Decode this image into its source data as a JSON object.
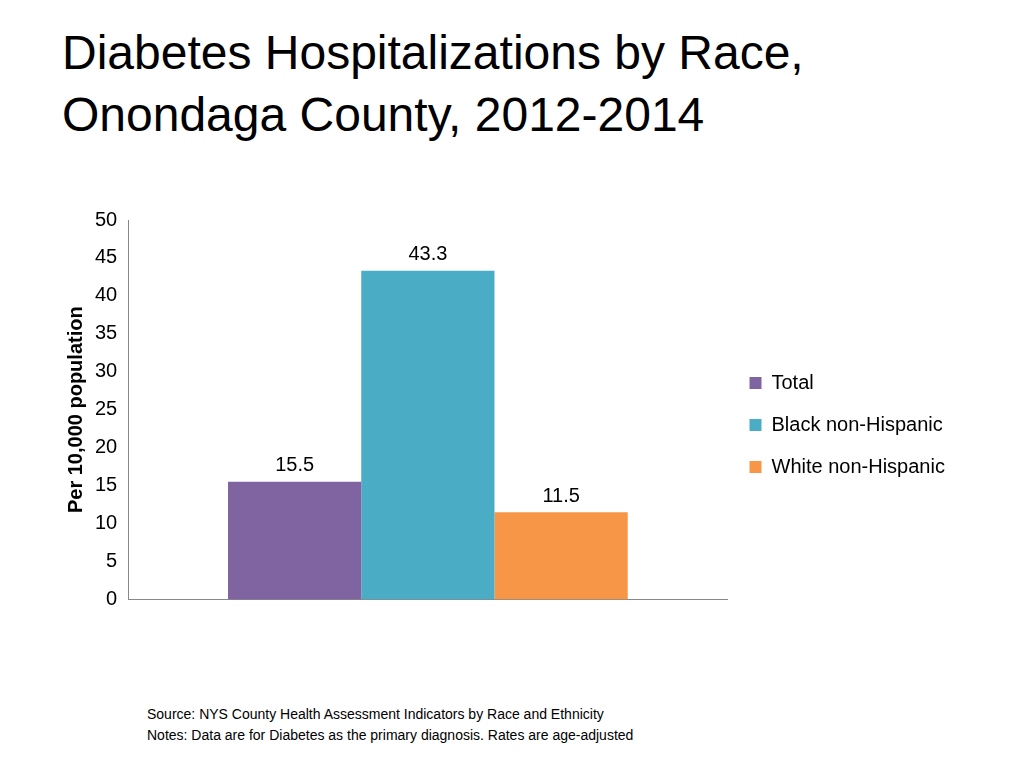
{
  "chart_data": {
    "type": "bar",
    "title": "Diabetes Hospitalizations by Race, Onondaga County, 2012-2014",
    "y_label": "Per 10,000 population",
    "categories": [
      null
    ],
    "series": [
      {
        "name": "Total",
        "color": "#8064a2",
        "values": [
          15.5
        ]
      },
      {
        "name": "Black non-Hispanic",
        "color": "#4bacc6",
        "values": [
          43.3
        ]
      },
      {
        "name": "White non-Hispanic",
        "color": "#f79646",
        "values": [
          11.5
        ]
      }
    ],
    "ylim": [
      0,
      50
    ],
    "yticks": [
      0,
      5,
      10,
      15,
      20,
      25,
      30,
      35,
      40,
      45,
      50
    ],
    "grid": false,
    "legend": "right",
    "data_labels": true,
    "annotations": [
      "Source: NYS County Health Assessment Indicators by Race and Ethnicity",
      "Notes: Data are for Diabetes as the primary diagnosis. Rates are age-adjusted"
    ]
  }
}
